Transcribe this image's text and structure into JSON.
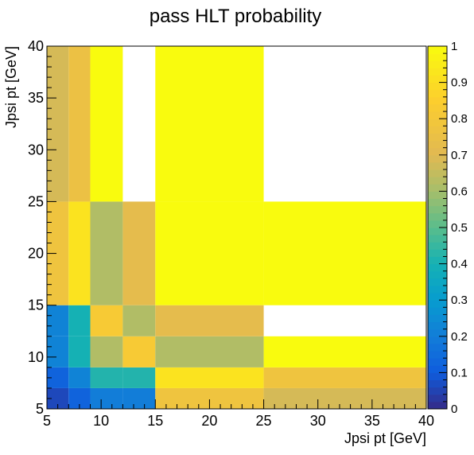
{
  "chart_data": {
    "type": "heatmap",
    "title": "pass HLT probability",
    "xlabel": "Jpsi pt [GeV]",
    "ylabel": "Jpsi pt [GeV]",
    "xlim": [
      5,
      40
    ],
    "ylim": [
      5,
      40
    ],
    "zlim": [
      0,
      1
    ],
    "x_edges": [
      5,
      7,
      9,
      12,
      15,
      25,
      40
    ],
    "y_edges": [
      5,
      7,
      9,
      12,
      15,
      25,
      40
    ],
    "x_ticks": [
      5,
      10,
      15,
      20,
      25,
      30,
      35,
      40
    ],
    "y_ticks": [
      5,
      10,
      15,
      20,
      25,
      30,
      35,
      40
    ],
    "z_ticks": [
      0,
      0.1,
      0.2,
      0.3,
      0.4,
      0.5,
      0.6,
      0.7,
      0.8,
      0.9,
      1
    ],
    "z_tick_labels": [
      "0",
      "0.1",
      "0.2",
      "0.3",
      "0.4",
      "0.5",
      "0.6",
      "0.7",
      "0.8",
      "0.9",
      "1"
    ],
    "values": [
      [
        0.06,
        0.12,
        0.2,
        0.2,
        0.78,
        0.68
      ],
      [
        0.12,
        0.22,
        0.42,
        0.42,
        0.92,
        0.78
      ],
      [
        0.22,
        0.4,
        0.62,
        0.82,
        0.62,
        1.0
      ],
      [
        0.22,
        0.4,
        0.82,
        0.62,
        0.72,
        null
      ],
      [
        0.78,
        0.92,
        0.62,
        0.72,
        1.0,
        1.0
      ],
      [
        0.68,
        0.76,
        1.0,
        null,
        1.0,
        null
      ]
    ],
    "colorbar": true,
    "grid": false,
    "legend": "none"
  }
}
